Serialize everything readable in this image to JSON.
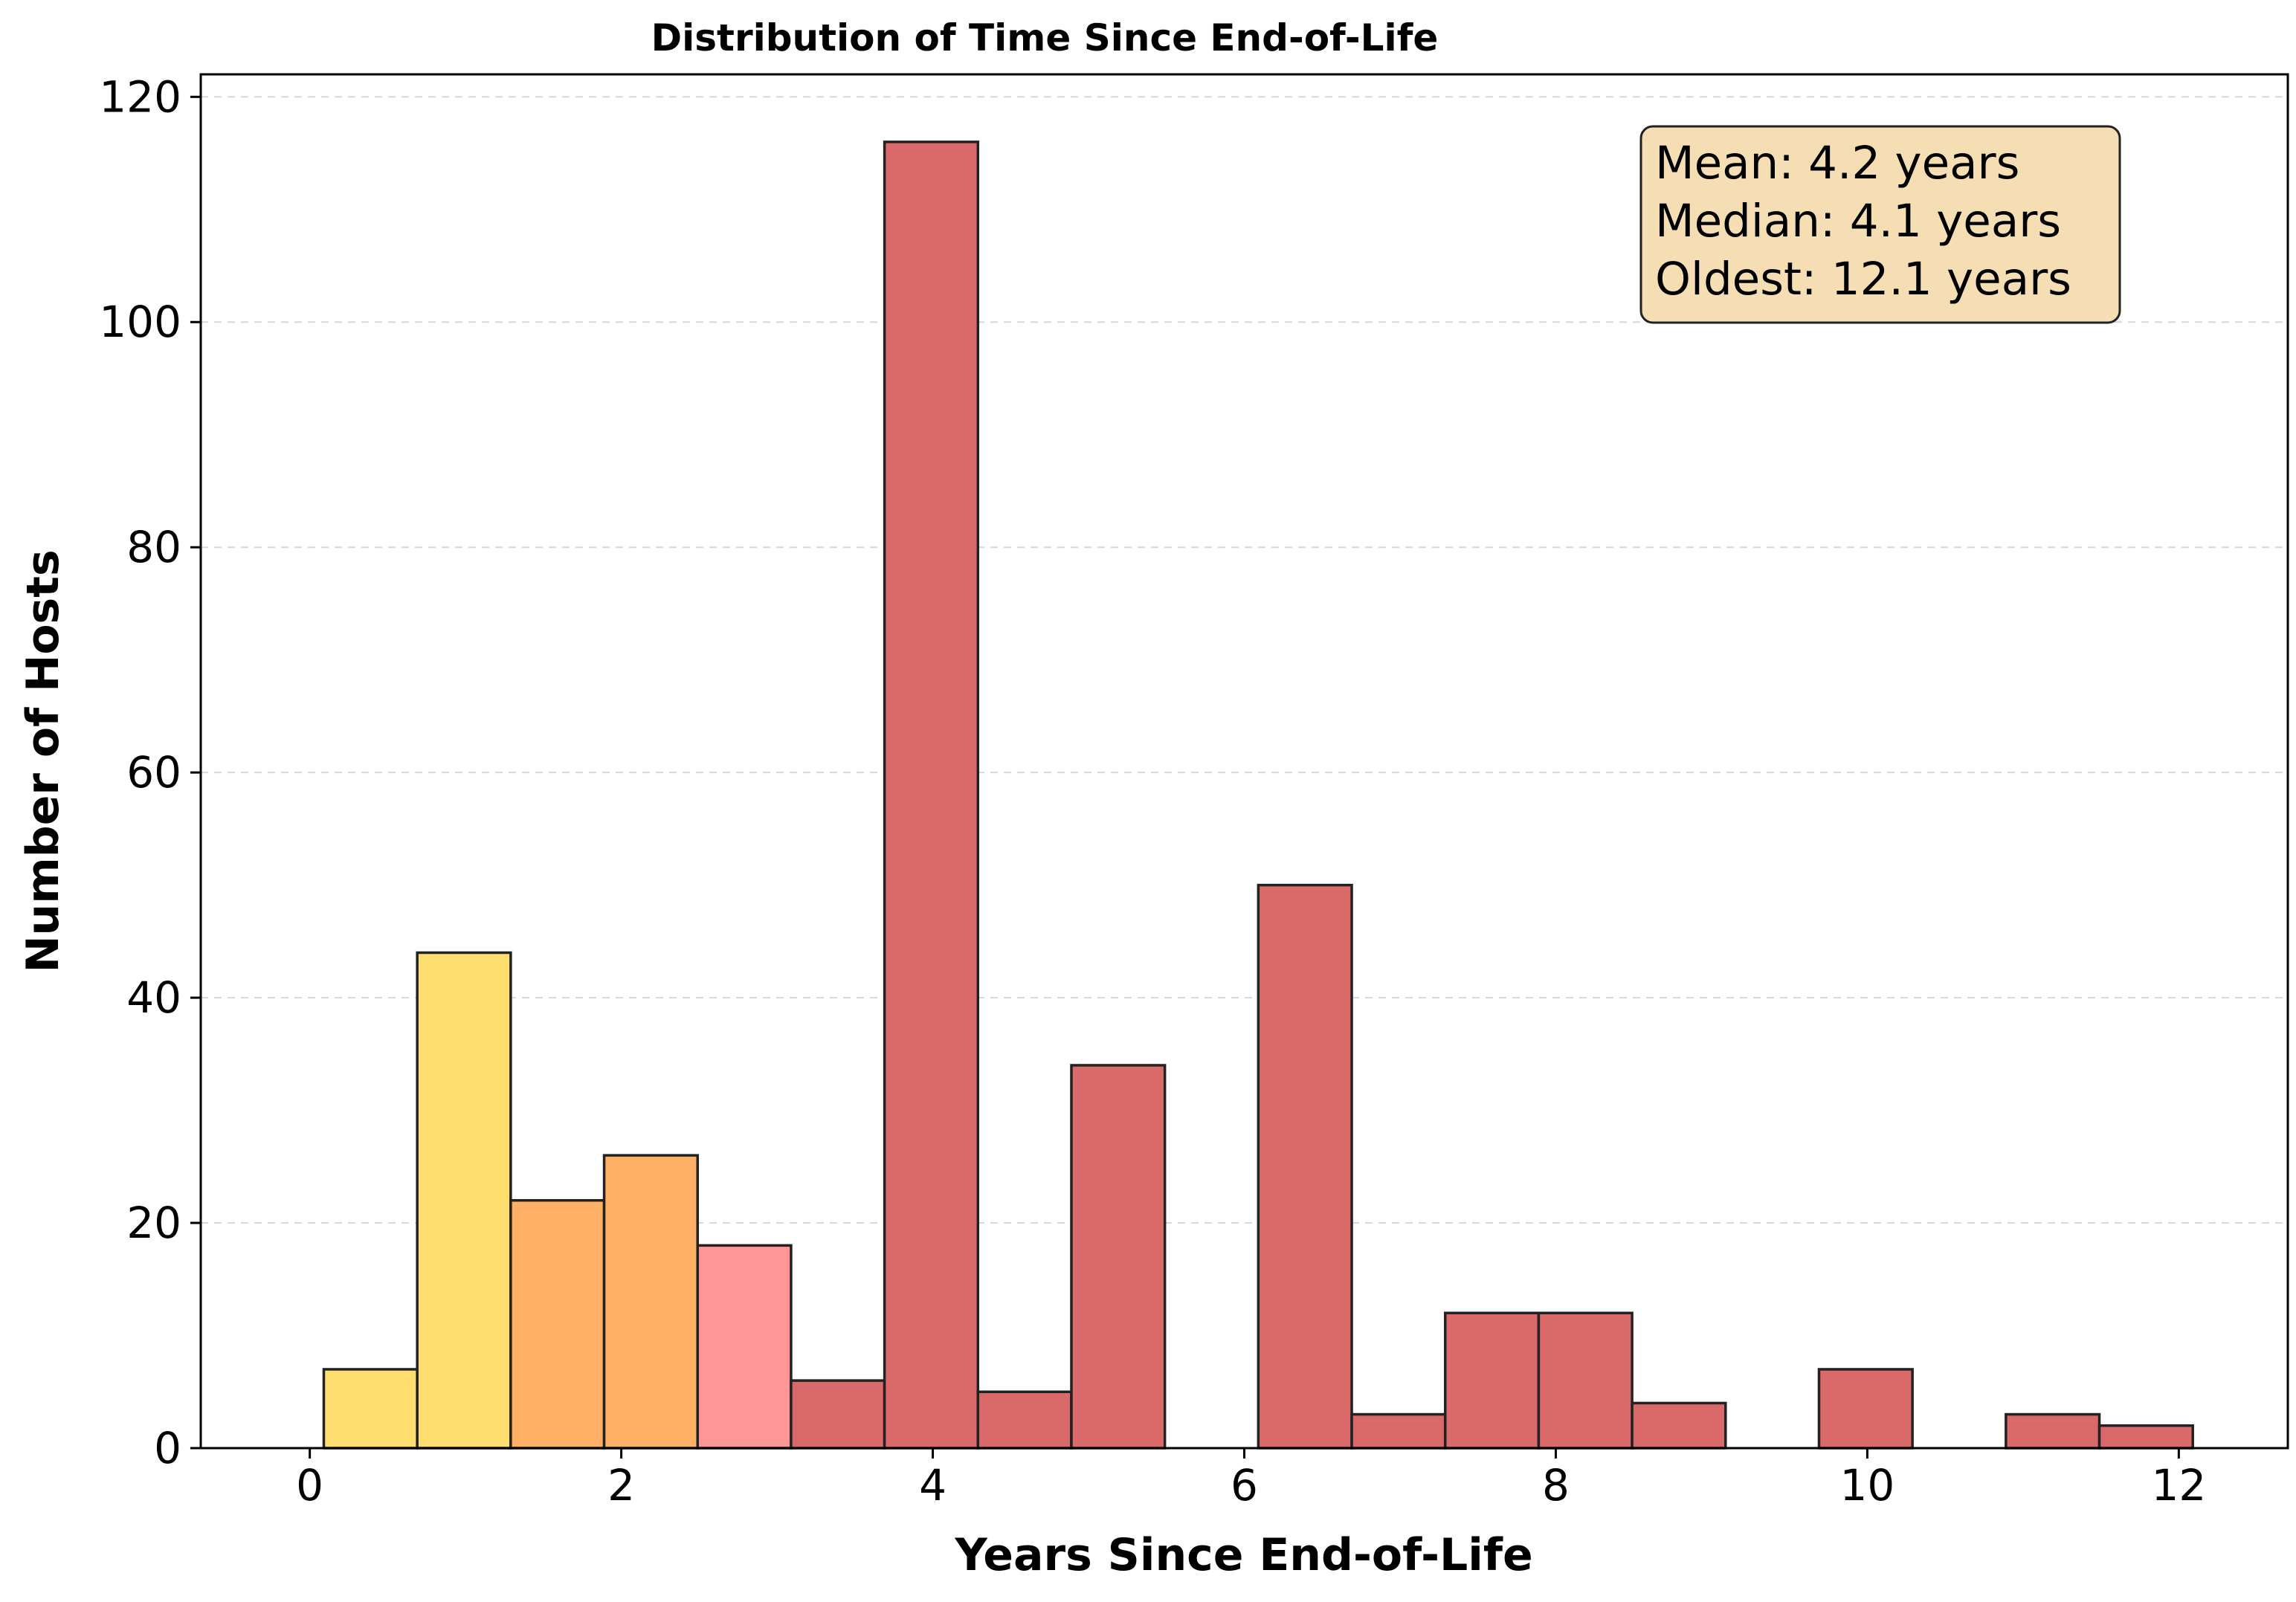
{
  "chart_data": {
    "type": "bar",
    "title": "Distribution of Time Since End-of-Life",
    "xlabel": "Years Since End-of-Life",
    "ylabel": "Number of Hosts",
    "xlim": [
      -0.7,
      12.7
    ],
    "ylim": [
      0,
      122
    ],
    "x_ticks": [
      "0",
      "2",
      "4",
      "6",
      "8",
      "10",
      "12"
    ],
    "y_ticks": [
      "0",
      "20",
      "40",
      "60",
      "80",
      "100",
      "120"
    ],
    "grid": "y-dashed",
    "bins": [
      {
        "start": 0.09,
        "end": 0.69,
        "count": 7,
        "color": "#ffde70"
      },
      {
        "start": 0.69,
        "end": 1.29,
        "count": 44,
        "color": "#ffde70"
      },
      {
        "start": 1.29,
        "end": 1.89,
        "count": 22,
        "color": "#ffb067"
      },
      {
        "start": 1.89,
        "end": 2.49,
        "count": 26,
        "color": "#ffb067"
      },
      {
        "start": 2.49,
        "end": 3.09,
        "count": 18,
        "color": "#ff9595"
      },
      {
        "start": 3.09,
        "end": 3.69,
        "count": 6,
        "color": "#da6969"
      },
      {
        "start": 3.69,
        "end": 4.29,
        "count": 116,
        "color": "#da6969"
      },
      {
        "start": 4.29,
        "end": 4.89,
        "count": 5,
        "color": "#da6969"
      },
      {
        "start": 4.89,
        "end": 5.49,
        "count": 34,
        "color": "#da6969"
      },
      {
        "start": 5.49,
        "end": 6.09,
        "count": 0,
        "color": "#da6969"
      },
      {
        "start": 6.09,
        "end": 6.69,
        "count": 50,
        "color": "#da6969"
      },
      {
        "start": 6.69,
        "end": 7.29,
        "count": 3,
        "color": "#da6969"
      },
      {
        "start": 7.29,
        "end": 7.89,
        "count": 12,
        "color": "#da6969"
      },
      {
        "start": 7.89,
        "end": 8.49,
        "count": 12,
        "color": "#da6969"
      },
      {
        "start": 8.49,
        "end": 9.09,
        "count": 4,
        "color": "#da6969"
      },
      {
        "start": 9.09,
        "end": 9.69,
        "count": 0,
        "color": "#da6969"
      },
      {
        "start": 9.69,
        "end": 10.29,
        "count": 7,
        "color": "#da6969"
      },
      {
        "start": 10.29,
        "end": 10.89,
        "count": 0,
        "color": "#da6969"
      },
      {
        "start": 10.89,
        "end": 11.49,
        "count": 3,
        "color": "#da6969"
      },
      {
        "start": 11.49,
        "end": 12.09,
        "count": 2,
        "color": "#da6969"
      }
    ],
    "annotation": {
      "lines": [
        "Mean: 4.2 years",
        "Median: 4.1 years",
        "Oldest: 12.1 years"
      ],
      "placement": "top-right",
      "background": "#f5deb3"
    }
  }
}
